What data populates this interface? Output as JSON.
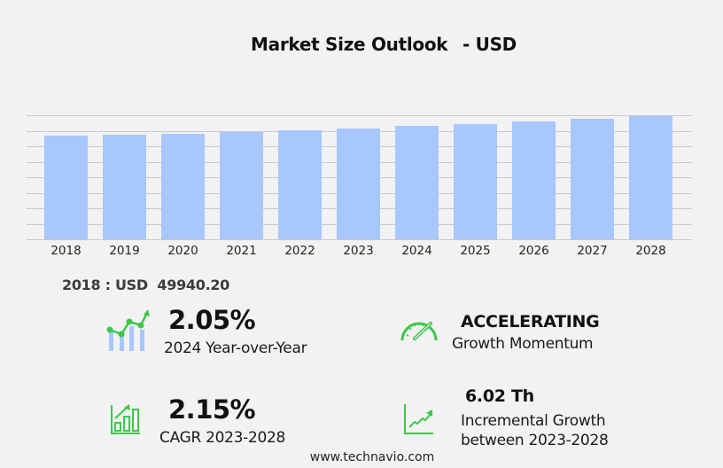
{
  "header": {
    "title": "Market Size Outlook",
    "currency_suffix": "- USD"
  },
  "chart_data": {
    "type": "bar",
    "title": "Market Size Outlook - USD",
    "xlabel": "",
    "ylabel": "",
    "categories": [
      "2018",
      "2019",
      "2020",
      "2021",
      "2022",
      "2023",
      "2024",
      "2025",
      "2026",
      "2027",
      "2028"
    ],
    "values": [
      49940.2,
      50400,
      50900,
      51700,
      52500,
      53400,
      54500,
      55700,
      56900,
      58100,
      59400
    ],
    "ylim": [
      0,
      59760
    ],
    "grid": true,
    "gridlines": 9,
    "bar_color": "#a7c7fd",
    "legend": null
  },
  "base_value": {
    "label": "2018 : USD  49940.20"
  },
  "kpis": {
    "yoy": {
      "value": "2.05%",
      "label": "2024 Year-over-Year",
      "icon": "bar-line-growth-icon"
    },
    "momentum": {
      "value": "ACCELERATING",
      "label": "Growth Momentum",
      "icon": "speedometer-icon"
    },
    "cagr": {
      "value": "2.15%",
      "label": "CAGR 2023-2028",
      "icon": "bar-chart-arrow-icon"
    },
    "incremental": {
      "value": "6.02 Th",
      "label_line1": "Incremental Growth",
      "label_line2": "between 2023-2028",
      "icon": "trend-line-icon"
    }
  },
  "colors": {
    "accent_green": "#3cc84a",
    "bar_blue": "#a7c7fd",
    "background": "#f2f2f4"
  },
  "footer": {
    "source": "www.technavio.com"
  }
}
